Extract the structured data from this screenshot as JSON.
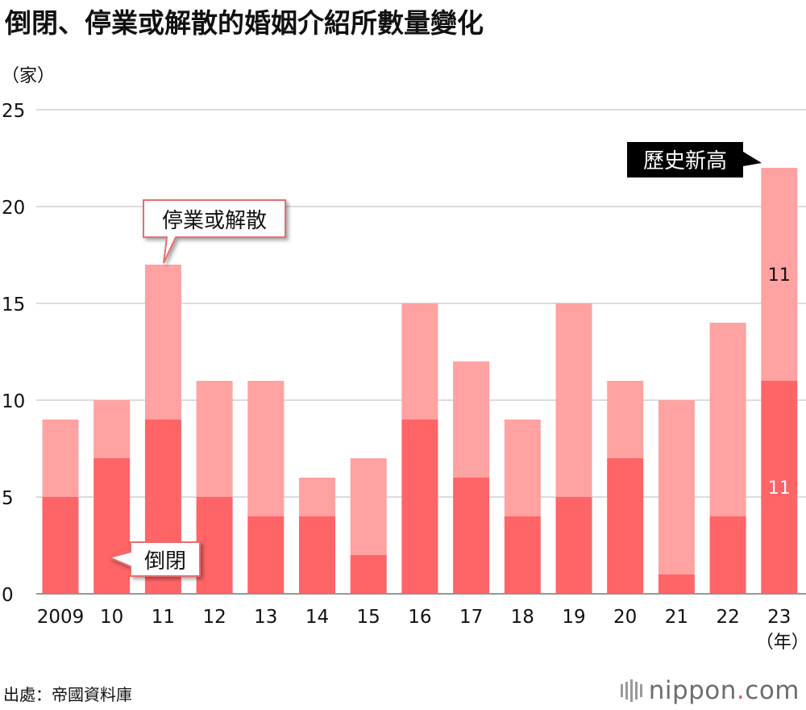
{
  "title": "倒閉、停業或解散的婚姻介紹所數量變化",
  "source": "出處：帝國資料庫",
  "logo": {
    "name": "nippon.com"
  },
  "colors": {
    "bankrupt": "#ff6467",
    "closed": "#ffa2a1",
    "grid": "#c8c8c8"
  },
  "chart_data": {
    "type": "bar",
    "stacked": true,
    "ylabel": "（家）",
    "xlabel": "（年）",
    "categories": [
      "2009",
      "10",
      "11",
      "12",
      "13",
      "14",
      "15",
      "16",
      "17",
      "18",
      "19",
      "20",
      "21",
      "22",
      "23"
    ],
    "series": [
      {
        "name": "倒閉",
        "values": [
          5,
          7,
          9,
          5,
          4,
          4,
          2,
          9,
          6,
          4,
          5,
          7,
          1,
          4,
          11
        ]
      },
      {
        "name": "停業或解散",
        "values": [
          4,
          3,
          8,
          6,
          7,
          2,
          5,
          6,
          6,
          5,
          10,
          4,
          9,
          10,
          11
        ]
      }
    ],
    "ylim": [
      0,
      25
    ],
    "yticks": [
      0,
      5,
      10,
      15,
      20,
      25
    ],
    "grid": true,
    "data_labels": [
      {
        "category": "23",
        "series": "停業或解散",
        "text": "11"
      },
      {
        "category": "23",
        "series": "倒閉",
        "text": "11"
      }
    ],
    "annotations": [
      {
        "text": "停業或解散",
        "target_category": "11",
        "target_series": "停業或解散",
        "style": "callout-outline"
      },
      {
        "text": "倒閉",
        "target_category": "10",
        "target_series": "倒閉",
        "style": "callout-outline"
      },
      {
        "text": "歷史新高",
        "target_category": "23",
        "style": "callout-black"
      }
    ]
  }
}
